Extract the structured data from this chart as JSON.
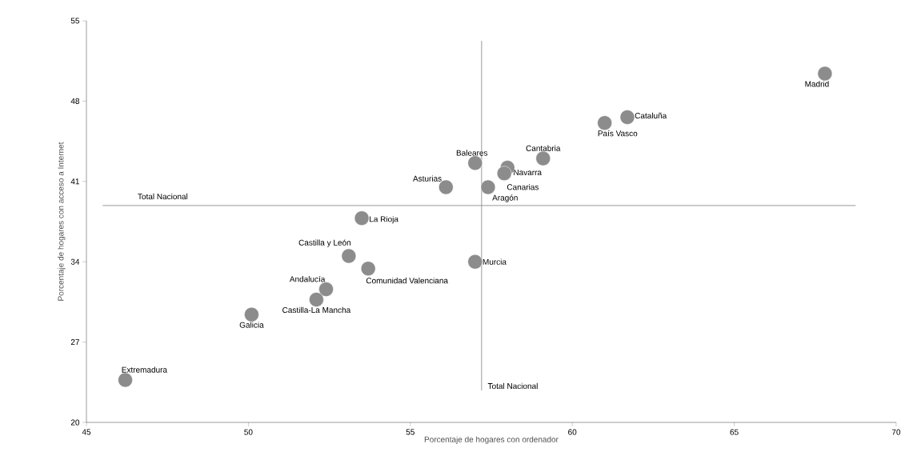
{
  "chart_data": {
    "type": "scatter",
    "xlabel": "Porcentaje de hogares con ordenador",
    "ylabel": "Porcentaje de hogares con acceso a Internet",
    "x": [
      67.8,
      61.7,
      61.0,
      59.1,
      57.0,
      58.0,
      57.9,
      57.4,
      56.1,
      53.5,
      53.1,
      53.7,
      57.0,
      52.4,
      52.1,
      50.1,
      46.2
    ],
    "series": [
      {
        "color": "#8c8c8c",
        "values": [
          50.4,
          46.6,
          46.1,
          43.0,
          42.6,
          42.2,
          41.7,
          40.5,
          40.5,
          37.8,
          34.5,
          33.4,
          34.0,
          31.6,
          30.7,
          29.4,
          23.7
        ]
      }
    ],
    "annotations": [
      {
        "text": "Madrid",
        "x": 67.8,
        "y": 50.4
      },
      {
        "text": "Cataluña",
        "x": 61.7,
        "y": 46.6
      },
      {
        "text": "País Vasco",
        "x": 61.0,
        "y": 46.1
      },
      {
        "text": "Cantabria",
        "x": 59.1,
        "y": 43.0
      },
      {
        "text": "Baleares",
        "x": 57.0,
        "y": 42.6
      },
      {
        "text": "Navarra",
        "x": 58.0,
        "y": 42.2
      },
      {
        "text": "Canarias",
        "x": 57.9,
        "y": 41.7
      },
      {
        "text": "Aragón",
        "x": 57.4,
        "y": 40.5
      },
      {
        "text": "Asturias",
        "x": 56.1,
        "y": 40.5
      },
      {
        "text": "La Rioja",
        "x": 53.5,
        "y": 37.8
      },
      {
        "text": "Castilla y León",
        "x": 53.1,
        "y": 34.5
      },
      {
        "text": "Comunidad Valenciana",
        "x": 53.7,
        "y": 33.4
      },
      {
        "text": "Murcia",
        "x": 57.0,
        "y": 34.0
      },
      {
        "text": "Andalucía",
        "x": 52.4,
        "y": 31.6
      },
      {
        "text": "Castilla-La Mancha",
        "x": 52.1,
        "y": 30.7
      },
      {
        "text": "Galicia",
        "x": 50.1,
        "y": 29.4
      },
      {
        "text": "Extremadura",
        "x": 46.2,
        "y": 23.7
      }
    ],
    "ref_lines": [
      {
        "axis": "x",
        "value": 57.2,
        "label": "Total Nacional",
        "color": "#808080"
      },
      {
        "axis": "y",
        "value": 38.9,
        "label": "Total Nacional",
        "color": "#808080"
      }
    ],
    "xlim": [
      45,
      70
    ],
    "ylim": [
      20,
      55
    ],
    "xticks": [
      45,
      50,
      55,
      60,
      65,
      70
    ],
    "yticks": [
      20,
      27,
      34,
      41,
      48,
      55
    ],
    "grid": false
  }
}
